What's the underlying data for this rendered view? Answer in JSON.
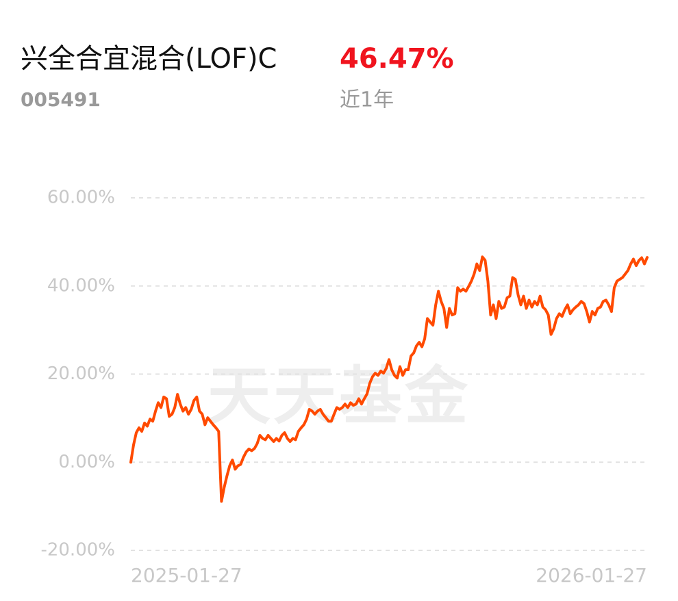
{
  "header": {
    "title": "兴全合宜混合(LOF)C",
    "code": "005491",
    "return": "46.47%",
    "period": "近1年"
  },
  "chart_data": {
    "type": "line",
    "watermark": "天天基金",
    "color": "#ff4a00",
    "grid": true,
    "ylim": [
      -20,
      60
    ],
    "yticks": [
      {
        "value": 60,
        "label": "60.00%"
      },
      {
        "value": 40,
        "label": "40.00%"
      },
      {
        "value": 20,
        "label": "20.00%"
      },
      {
        "value": 0,
        "label": "0.00%"
      },
      {
        "value": -20,
        "label": "-20.00%"
      }
    ],
    "categories": [
      "2025-01-27",
      null,
      null,
      null,
      null,
      null,
      null,
      null,
      null,
      null,
      null,
      null,
      null,
      null,
      null,
      null,
      null,
      null,
      null,
      null,
      null,
      null,
      null,
      null,
      null,
      null,
      null,
      null,
      null,
      null,
      null,
      null,
      null,
      null,
      null,
      null,
      null,
      null,
      null,
      null,
      null,
      null,
      null,
      null,
      null,
      null,
      null,
      null,
      null,
      null,
      null,
      null,
      null,
      null,
      null,
      null,
      null,
      null,
      null,
      null,
      null,
      null,
      null,
      null,
      null,
      null,
      null,
      null,
      null,
      null,
      null,
      null,
      null,
      null,
      null,
      null,
      null,
      null,
      null,
      null,
      null,
      null,
      null,
      null,
      null,
      null,
      null,
      null,
      null,
      null,
      null,
      null,
      null,
      null,
      null,
      null,
      null,
      null,
      null,
      null,
      null,
      null,
      null,
      null,
      null,
      null,
      null,
      null,
      null,
      null,
      null,
      null,
      null,
      null,
      null,
      null,
      null,
      null,
      null,
      null,
      null,
      null,
      null,
      null,
      null,
      null,
      null,
      null,
      null,
      null,
      null,
      null,
      null,
      null,
      null,
      null,
      null,
      null,
      null,
      null,
      null,
      null,
      null,
      null,
      null,
      null,
      null,
      null,
      null,
      null,
      null,
      null,
      null,
      null,
      null,
      null,
      null,
      null,
      null,
      null,
      null,
      null,
      null,
      null,
      null,
      null,
      null,
      null,
      null,
      null,
      null,
      null,
      null,
      null,
      null,
      null,
      null,
      null,
      null,
      null,
      null,
      null,
      null,
      null,
      null,
      null,
      null,
      null,
      "2026-01-27"
    ],
    "values": [
      0,
      3.9,
      6.7,
      7.8,
      7.0,
      8.9,
      8.2,
      9.8,
      9.3,
      11.6,
      13.5,
      12.4,
      14.8,
      14.4,
      10.4,
      10.9,
      12.4,
      15.4,
      13.2,
      11.6,
      12.4,
      10.9,
      12.0,
      14.0,
      14.8,
      11.6,
      10.9,
      8.5,
      10.1,
      9.3,
      8.5,
      7.8,
      7.0,
      -8.9,
      -5.7,
      -3.1,
      -0.8,
      0.5,
      -1.6,
      -0.8,
      -0.5,
      1.1,
      2.3,
      3.0,
      2.6,
      3.1,
      4.2,
      6.1,
      5.4,
      5.1,
      6.1,
      5.4,
      4.7,
      5.4,
      4.8,
      6.1,
      6.7,
      5.4,
      4.7,
      5.4,
      5.1,
      7.0,
      7.8,
      8.5,
      9.8,
      12.0,
      11.6,
      10.9,
      11.6,
      12.0,
      10.9,
      10.1,
      9.3,
      9.3,
      10.9,
      12.4,
      12.0,
      12.4,
      13.2,
      12.4,
      13.5,
      12.9,
      13.2,
      14.4,
      13.2,
      14.4,
      15.5,
      17.9,
      19.4,
      20.2,
      19.7,
      20.7,
      20.2,
      21.3,
      23.3,
      21.0,
      19.7,
      19.1,
      21.7,
      19.7,
      21.0,
      21.0,
      24.1,
      24.8,
      26.4,
      27.2,
      26.2,
      28.0,
      32.6,
      31.8,
      31.1,
      35.7,
      38.8,
      36.5,
      34.9,
      30.6,
      34.9,
      33.4,
      33.7,
      39.6,
      38.8,
      39.3,
      38.8,
      39.9,
      41.1,
      42.7,
      45.0,
      43.5,
      46.6,
      45.8,
      41.1,
      33.4,
      35.7,
      32.6,
      36.5,
      34.9,
      35.2,
      37.3,
      37.7,
      41.9,
      41.5,
      38.0,
      35.7,
      37.7,
      34.9,
      36.8,
      35.2,
      36.5,
      35.7,
      37.7,
      35.2,
      34.6,
      33.4,
      29.0,
      30.3,
      32.6,
      33.7,
      33.1,
      34.6,
      35.7,
      33.7,
      34.6,
      35.2,
      35.7,
      36.5,
      36.0,
      34.2,
      31.8,
      34.2,
      33.4,
      34.9,
      35.2,
      36.5,
      36.8,
      35.7,
      34.2,
      39.6,
      41.1,
      41.5,
      41.9,
      42.7,
      43.5,
      45.0,
      46.1,
      44.6,
      45.8,
      46.4,
      45.0,
      46.47
    ]
  }
}
